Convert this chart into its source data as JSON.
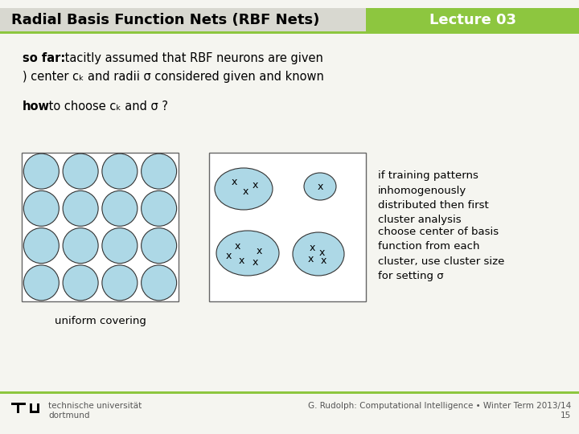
{
  "title": "Radial Basis Function Nets (RBF Nets)",
  "lecture": "Lecture 03",
  "lecture_bg": "#8dc63f",
  "bg_color": "#f5f5f0",
  "slide_bg": "#f5f5f0",
  "line1_bold": "so far:",
  "line1_rest": " tacitly assumed that RBF neurons are given",
  "line2": ") center cₖ and radii σ considered given and known",
  "line3_bold": "how",
  "line3_rest": " to choose cₖ and σ ?",
  "caption_left": "uniform covering",
  "right_text1": "if training patterns\ninhomogenously\ndistributed then first\ncluster analysis",
  "right_text2": "choose center of basis\nfunction from each\ncluster, use cluster size\nfor setting σ",
  "footer_left1": "technische universität",
  "footer_left2": "dortmund",
  "footer_right": "G. Rudolph: Computational Intelligence • Winter Term 2013/14\n15",
  "circle_fill": "#add8e6",
  "circle_edge": "#333333",
  "header_gray": "#d8d8d0",
  "header_line_color": "#8dc63f"
}
